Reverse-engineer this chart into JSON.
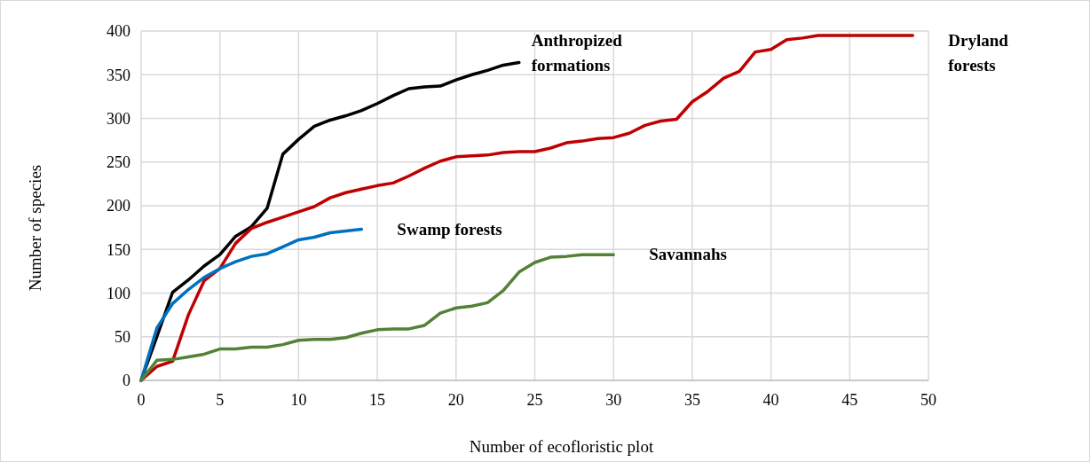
{
  "chart_data": {
    "type": "line",
    "xlabel": "Number of ecofloristic plot",
    "ylabel": "Number of species",
    "xlim": [
      0,
      50
    ],
    "xticks": [
      0,
      5,
      10,
      15,
      20,
      25,
      30,
      35,
      40,
      45,
      50
    ],
    "ylim": [
      0,
      400
    ],
    "yticks": [
      0,
      50,
      100,
      150,
      200,
      250,
      300,
      350,
      400
    ],
    "grid": true,
    "marker": "none",
    "line_style": "solid",
    "series": [
      {
        "name": "Anthropized formations",
        "color": "#000000",
        "x": [
          0,
          1,
          2,
          3,
          4,
          5,
          6,
          7,
          8,
          9,
          10,
          11,
          12,
          13,
          14,
          15,
          16,
          17,
          18,
          19,
          20,
          21,
          22,
          23,
          24
        ],
        "values": [
          0,
          50,
          101,
          115,
          131,
          144,
          165,
          176,
          197,
          259,
          276,
          291,
          298,
          303,
          309,
          317,
          326,
          334,
          336,
          337,
          344,
          350,
          355,
          361,
          364
        ]
      },
      {
        "name": "Dryland forests",
        "color": "#c00000",
        "x": [
          0,
          1,
          2,
          3,
          4,
          5,
          6,
          7,
          8,
          9,
          10,
          11,
          12,
          13,
          14,
          15,
          16,
          17,
          18,
          19,
          20,
          21,
          22,
          23,
          24,
          25,
          26,
          27,
          28,
          29,
          30,
          31,
          32,
          33,
          34,
          35,
          36,
          37,
          38,
          39,
          40,
          41,
          42,
          43,
          44,
          45,
          46,
          47,
          48,
          49
        ],
        "values": [
          0,
          16,
          22,
          75,
          114,
          128,
          157,
          174,
          181,
          187,
          193,
          199,
          209,
          215,
          219,
          223,
          226,
          234,
          243,
          251,
          256,
          257,
          258,
          261,
          262,
          262,
          266,
          272,
          274,
          277,
          278,
          283,
          292,
          297,
          299,
          319,
          331,
          346,
          354,
          376,
          379,
          390,
          392,
          395,
          395,
          395,
          395,
          395,
          395,
          395
        ]
      },
      {
        "name": "Swamp forests",
        "color": "#0070c0",
        "x": [
          0,
          1,
          2,
          3,
          4,
          5,
          6,
          7,
          8,
          9,
          10,
          11,
          12,
          13,
          14
        ],
        "values": [
          0,
          60,
          88,
          104,
          118,
          128,
          136,
          142,
          145,
          153,
          161,
          164,
          169,
          171,
          173
        ]
      },
      {
        "name": "Savannahs",
        "color": "#538135",
        "x": [
          0,
          1,
          2,
          3,
          4,
          5,
          6,
          7,
          8,
          9,
          10,
          11,
          12,
          13,
          14,
          15,
          16,
          17,
          18,
          19,
          20,
          21,
          22,
          23,
          24,
          25,
          26,
          27,
          28,
          29,
          30
        ],
        "values": [
          0,
          23,
          24,
          27,
          30,
          36,
          36,
          38,
          38,
          41,
          46,
          47,
          47,
          49,
          54,
          58,
          59,
          59,
          63,
          77,
          83,
          85,
          89,
          103,
          124,
          135,
          141,
          142,
          144,
          144,
          144
        ]
      }
    ]
  }
}
